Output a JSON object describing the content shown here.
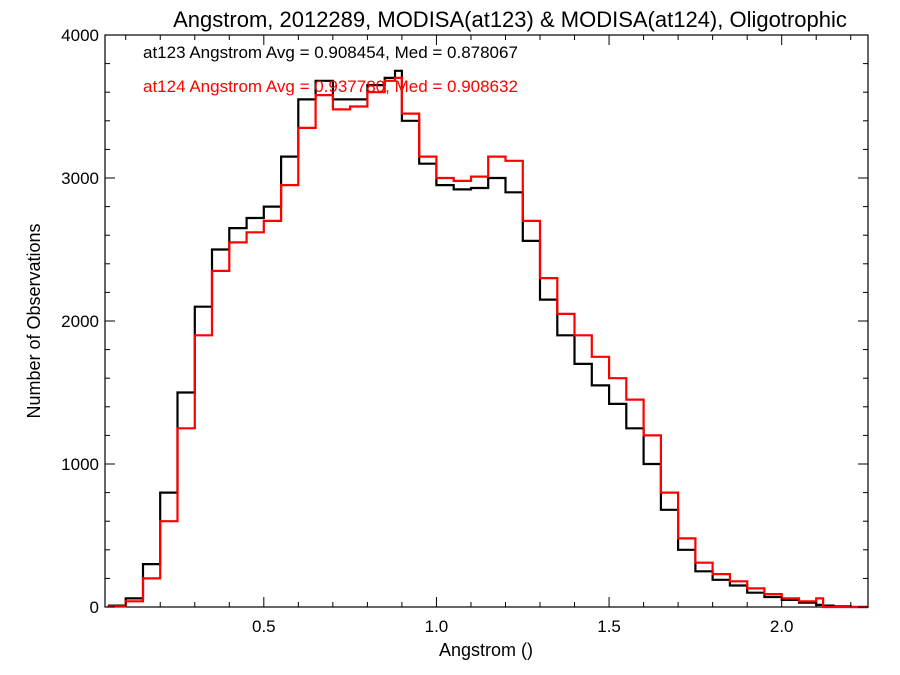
{
  "chart_data": {
    "type": "line",
    "title": "Angstrom, 2012289, MODISA(at123) & MODISA(at124), Oligotrophic",
    "xlabel": "Angstrom ()",
    "ylabel": "Number of Observations",
    "xlim": [
      0.04,
      2.25
    ],
    "ylim": [
      0,
      4000
    ],
    "x_ticks": [
      0.5,
      1.0,
      1.5,
      2.0
    ],
    "x_tick_labels": [
      "0.5",
      "1.0",
      "1.5",
      "2.0"
    ],
    "y_ticks": [
      0,
      1000,
      2000,
      3000,
      4000
    ],
    "y_tick_labels": [
      "0",
      "1000",
      "2000",
      "3000",
      "4000"
    ],
    "grid": false,
    "legend_position": "top-left",
    "annotations": [
      {
        "text": "at123 Angstrom Avg = 0.908454, Med = 0.878067",
        "color": "#000000"
      },
      {
        "text": "at124 Angstrom Avg = 0.937780, Med = 0.908632",
        "color": "#ff0000"
      }
    ],
    "series": [
      {
        "color": "#000000",
        "x": [
          0.05,
          0.1,
          0.15,
          0.2,
          0.25,
          0.3,
          0.35,
          0.4,
          0.45,
          0.5,
          0.55,
          0.6,
          0.65,
          0.7,
          0.75,
          0.8,
          0.85,
          0.88,
          0.9,
          0.95,
          1.0,
          1.05,
          1.1,
          1.15,
          1.2,
          1.25,
          1.3,
          1.35,
          1.4,
          1.45,
          1.5,
          1.55,
          1.6,
          1.65,
          1.7,
          1.75,
          1.8,
          1.85,
          1.9,
          1.95,
          2.0,
          2.05,
          2.1,
          2.12,
          2.15,
          2.2,
          2.25
        ],
        "y": [
          10,
          60,
          300,
          800,
          1500,
          2100,
          2500,
          2650,
          2720,
          2800,
          3150,
          3550,
          3680,
          3550,
          3550,
          3650,
          3700,
          3750,
          3400,
          3100,
          2950,
          2920,
          2930,
          3000,
          2900,
          2560,
          2150,
          1900,
          1700,
          1550,
          1420,
          1250,
          1000,
          680,
          400,
          250,
          190,
          150,
          100,
          70,
          50,
          30,
          15,
          10,
          5,
          0,
          0
        ]
      },
      {
        "color": "#ff0000",
        "x": [
          0.05,
          0.1,
          0.15,
          0.2,
          0.25,
          0.3,
          0.35,
          0.4,
          0.45,
          0.5,
          0.55,
          0.6,
          0.65,
          0.7,
          0.75,
          0.8,
          0.85,
          0.88,
          0.9,
          0.95,
          1.0,
          1.05,
          1.1,
          1.15,
          1.2,
          1.25,
          1.3,
          1.35,
          1.4,
          1.45,
          1.5,
          1.55,
          1.6,
          1.65,
          1.7,
          1.75,
          1.8,
          1.85,
          1.9,
          1.95,
          2.0,
          2.05,
          2.1,
          2.12,
          2.15,
          2.2,
          2.25
        ],
        "y": [
          5,
          40,
          200,
          600,
          1250,
          1900,
          2350,
          2550,
          2620,
          2700,
          2950,
          3350,
          3580,
          3480,
          3500,
          3600,
          3680,
          3700,
          3450,
          3150,
          3000,
          2980,
          3010,
          3150,
          3120,
          2700,
          2300,
          2050,
          1900,
          1750,
          1600,
          1450,
          1200,
          800,
          480,
          310,
          230,
          180,
          130,
          90,
          60,
          40,
          60,
          0,
          0,
          0,
          0
        ]
      }
    ]
  }
}
